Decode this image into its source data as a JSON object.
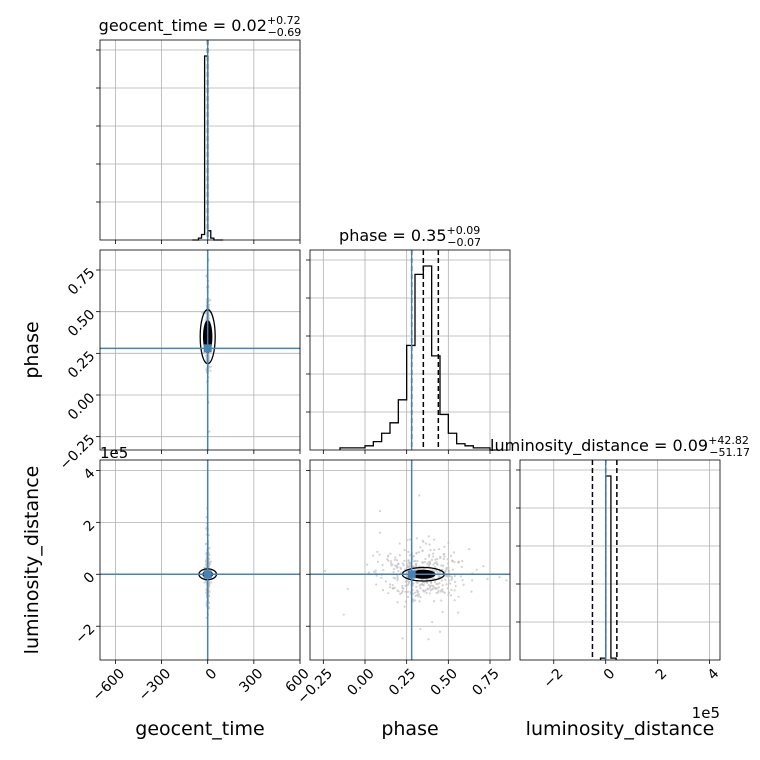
{
  "chart_data": {
    "type": "corner",
    "parameters": [
      "geocent_time",
      "phase",
      "luminosity_distance"
    ],
    "titles": {
      "geocent_time": {
        "label": "geocent_time = ",
        "median": "0.02",
        "plus": "+0.72",
        "minus": "−0.69"
      },
      "phase": {
        "label": "phase = ",
        "median": "0.35",
        "plus": "+0.09",
        "minus": "−0.07"
      },
      "luminosity_distance": {
        "label": "luminosity_distance = ",
        "median": "0.09",
        "plus": "+42.82",
        "minus": "−51.17"
      }
    },
    "axis_labels": {
      "geocent_time": "geocent_time",
      "phase": "phase",
      "luminosity_distance": "luminosity_distance"
    },
    "ranges": {
      "geocent_time": [
        -700,
        600
      ],
      "phase": [
        -0.33,
        0.87
      ],
      "luminosity_distance": [
        -330000,
        440000
      ]
    },
    "ticks": {
      "geocent_time": [
        -600,
        -300,
        0,
        300,
        600
      ],
      "phase": [
        -0.25,
        0.0,
        0.25,
        0.5,
        0.75
      ],
      "luminosity_distance": [
        -200000,
        0,
        200000,
        400000
      ]
    },
    "tick_labels": {
      "geocent_time": [
        "−600",
        "−300",
        "0",
        "300",
        "600"
      ],
      "phase": [
        "−0.25",
        "0.00",
        "0.25",
        "0.50",
        "0.75"
      ],
      "luminosity_distance": [
        "−2",
        "0",
        "2",
        "4"
      ]
    },
    "offset_label": {
      "luminosity_distance": "1e5"
    },
    "truths": {
      "geocent_time": 0,
      "phase": 0.28,
      "luminosity_distance": 0
    },
    "quantiles": {
      "geocent_time": [
        -0.67,
        0.02,
        0.74
      ],
      "phase": [
        0.28,
        0.35,
        0.44
      ],
      "luminosity_distance": [
        -51080,
        90,
        42910
      ]
    },
    "histograms": {
      "geocent_time": {
        "edges": [
          -100,
          -80,
          -60,
          -40,
          -20,
          0,
          20,
          40,
          60,
          80,
          100
        ],
        "values": [
          0,
          0,
          0.01,
          0.03,
          1.0,
          0.05,
          0.01,
          0,
          0,
          0
        ]
      },
      "phase": {
        "edges": [
          -0.15,
          -0.1,
          -0.05,
          0.0,
          0.05,
          0.1,
          0.15,
          0.2,
          0.25,
          0.3,
          0.35,
          0.4,
          0.45,
          0.5,
          0.55,
          0.6,
          0.65,
          0.7,
          0.75,
          0.8
        ],
        "values": [
          0.01,
          0.01,
          0.01,
          0.02,
          0.04,
          0.08,
          0.13,
          0.24,
          0.5,
          0.84,
          0.88,
          0.45,
          0.17,
          0.08,
          0.03,
          0.02,
          0.01,
          0.01,
          0.0
        ]
      },
      "luminosity_distance": {
        "edges": [
          -20000,
          0,
          20000,
          40000
        ],
        "values": [
          0.01,
          1.0,
          0.01
        ]
      }
    },
    "series_color": "#000000",
    "truth_color": "#4682b4",
    "sample_color": "#bfbfbf",
    "grid": true
  }
}
